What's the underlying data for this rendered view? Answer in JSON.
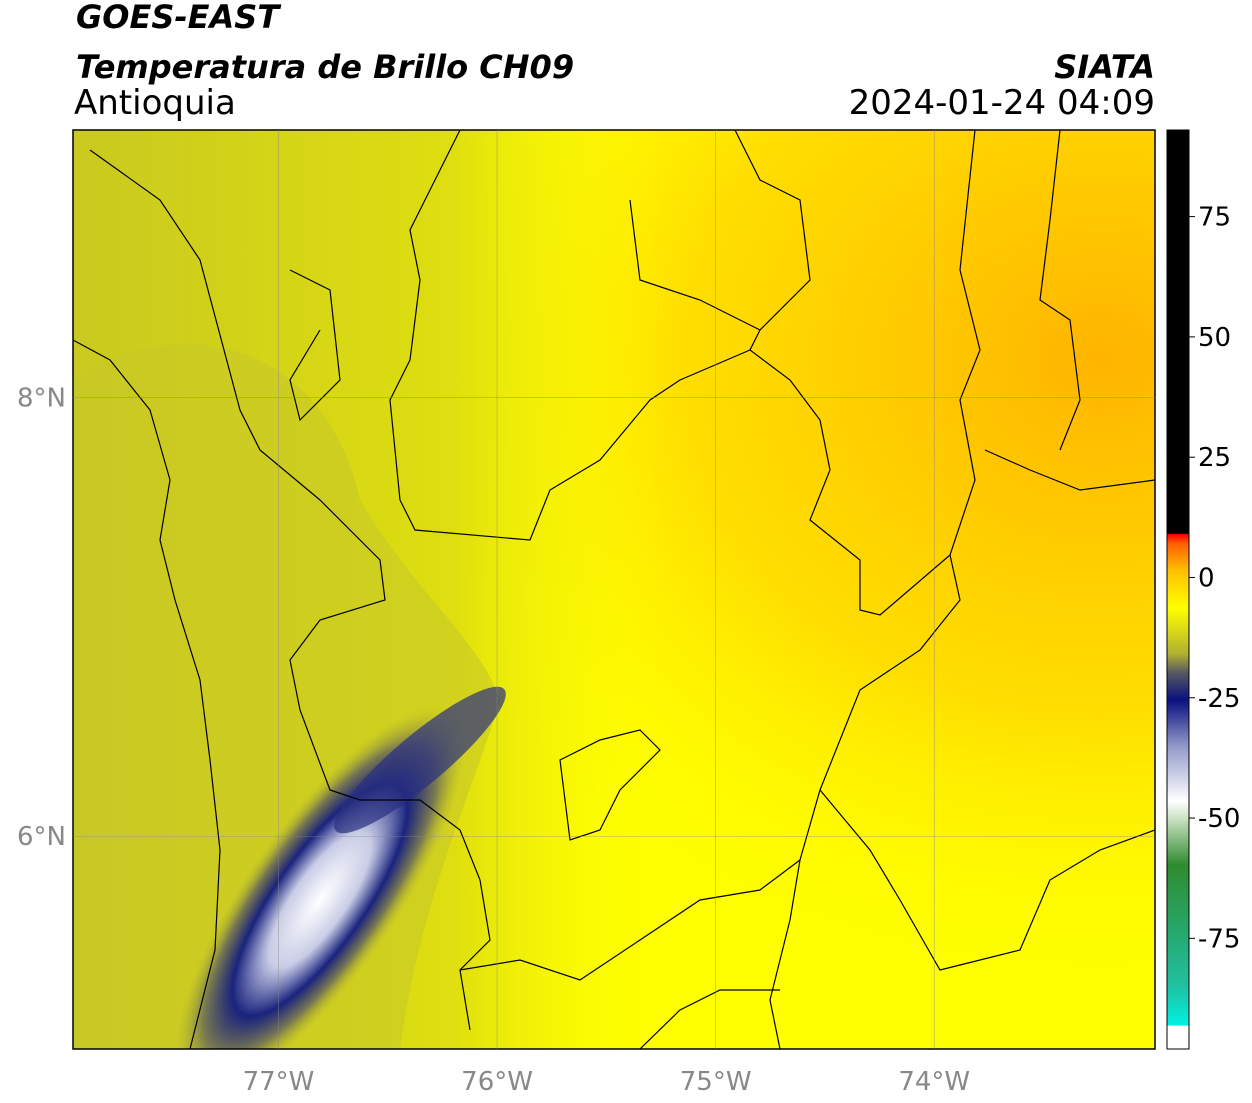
{
  "header": {
    "satellite": "GOES-EAST",
    "product": "Temperatura de Brillo CH09",
    "region": "Antioquia",
    "agency": "SIATA",
    "datetime": "2024-01-24 04:09"
  },
  "map": {
    "lon_lim": [
      -77.94,
      -72.99
    ],
    "lat_lim": [
      5.03,
      9.22
    ],
    "lon_ticks": [
      {
        "value": -77,
        "label": "77°W"
      },
      {
        "value": -76,
        "label": "76°W"
      },
      {
        "value": -75,
        "label": "75°W"
      },
      {
        "value": -74,
        "label": "74°W"
      }
    ],
    "lat_ticks": [
      {
        "value": 6,
        "label": "6°N"
      },
      {
        "value": 8,
        "label": "8°N"
      }
    ]
  },
  "colorbar": {
    "lim": [
      -98,
      93
    ],
    "ticks": [
      75,
      50,
      25,
      0,
      -25,
      -50,
      -75
    ]
  }
}
